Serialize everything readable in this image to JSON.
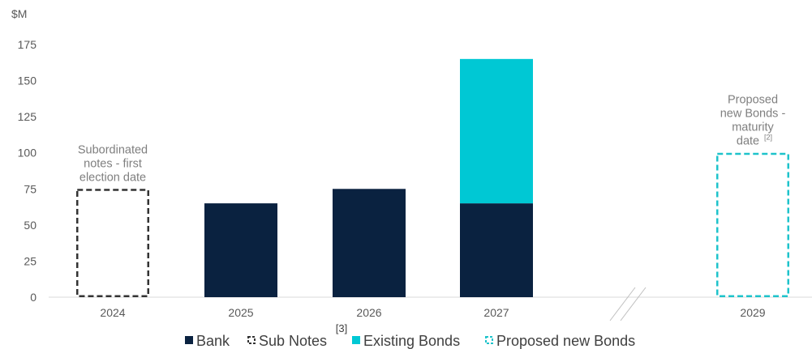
{
  "chart_data": {
    "type": "bar",
    "stacked": true,
    "unit_label": "$M",
    "categories": [
      "2024",
      "2025",
      "2026",
      "2027",
      "2029"
    ],
    "axis_break_between": [
      "2027",
      "2029"
    ],
    "ylim": [
      0,
      175
    ],
    "yticks": [
      "0",
      "25",
      "50",
      "75",
      "100",
      "125",
      "150",
      "175"
    ],
    "grid": false,
    "legend_position": "bottom",
    "series": [
      {
        "name": "Bank",
        "style": "solid",
        "color": "#0a2240",
        "values": [
          0,
          65,
          75,
          65,
          0
        ]
      },
      {
        "name": "Sub Notes",
        "style": "dashed-outline",
        "color": "#333333",
        "values": [
          75,
          0,
          0,
          0,
          0
        ]
      },
      {
        "name": "Existing Bonds",
        "style": "solid",
        "color": "#00c8d4",
        "values": [
          0,
          0,
          0,
          100,
          0
        ]
      },
      {
        "name": "Proposed new Bonds",
        "style": "dashed-outline",
        "color": "#1ec3cb",
        "values": [
          0,
          0,
          0,
          0,
          100
        ]
      }
    ],
    "annotations": [
      {
        "category": "2024",
        "lines": [
          "Subordinated",
          "notes - first",
          "election date"
        ],
        "superscript": ""
      },
      {
        "category": "2029",
        "lines": [
          "Proposed",
          "new Bonds -",
          "maturity",
          "date"
        ],
        "superscript": "[2]"
      }
    ],
    "footnote_marker": "[3]"
  }
}
